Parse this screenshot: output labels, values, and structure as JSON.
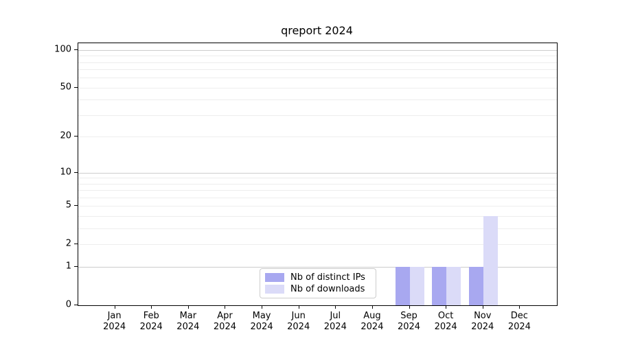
{
  "chart_data": {
    "type": "bar",
    "title": "qreport 2024",
    "categories": [
      "Jan",
      "Feb",
      "Mar",
      "Apr",
      "May",
      "Jun",
      "Jul",
      "Aug",
      "Sep",
      "Oct",
      "Nov",
      "Dec"
    ],
    "category_year_line": "2024",
    "series": [
      {
        "name": "Nb of distinct IPs",
        "color": "#a8a8f0",
        "values": [
          0,
          0,
          0,
          0,
          0,
          0,
          0,
          0,
          1,
          1,
          1,
          0
        ]
      },
      {
        "name": "Nb of downloads",
        "color": "#dbdbf8",
        "values": [
          0,
          0,
          0,
          0,
          0,
          0,
          0,
          0,
          1,
          1,
          4,
          0
        ]
      }
    ],
    "xlabel": "",
    "ylabel": "",
    "yscale": "log1p",
    "ylim": [
      0,
      113
    ],
    "yticks": [
      {
        "value": 100,
        "label": "100"
      },
      {
        "value": 50,
        "label": "50"
      },
      {
        "value": 20,
        "label": "20"
      },
      {
        "value": 10,
        "label": "10"
      },
      {
        "value": 5,
        "label": "5"
      },
      {
        "value": 2,
        "label": "2"
      },
      {
        "value": 1,
        "label": "1"
      },
      {
        "value": 0,
        "label": "0"
      }
    ],
    "grid": {
      "major_values": [
        1,
        10,
        100
      ],
      "minor_values": [
        2,
        3,
        4,
        5,
        6,
        7,
        8,
        9,
        20,
        30,
        40,
        50,
        60,
        70,
        80,
        90
      ],
      "major_color": "#cccccc",
      "minor_color": "#ededed"
    },
    "legend": {
      "entries": [
        "Nb of distinct IPs",
        "Nb of downloads"
      ],
      "position": "bottom-center"
    },
    "spine_color": "#000000",
    "background_color": "#ffffff"
  }
}
